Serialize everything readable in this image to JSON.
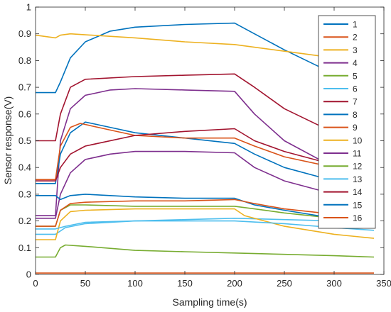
{
  "chart_data": {
    "type": "line",
    "title": "",
    "xlabel": "Sampling time(s)",
    "ylabel": "Sensor response(V)",
    "xlim": [
      0,
      350
    ],
    "ylim": [
      0,
      1
    ],
    "xticks": [
      0,
      50,
      100,
      150,
      200,
      250,
      300,
      350
    ],
    "yticks": [
      0,
      0.1,
      0.2,
      0.3,
      0.4,
      0.5,
      0.6,
      0.7,
      0.8,
      0.9,
      1
    ],
    "grid": false,
    "legend_position": "top-right",
    "series": [
      {
        "name": "1",
        "color": "#0072BD",
        "points": [
          [
            0,
            0.68
          ],
          [
            20,
            0.68
          ],
          [
            25,
            0.72
          ],
          [
            35,
            0.81
          ],
          [
            50,
            0.87
          ],
          [
            75,
            0.91
          ],
          [
            100,
            0.925
          ],
          [
            150,
            0.935
          ],
          [
            200,
            0.94
          ],
          [
            215,
            0.91
          ],
          [
            250,
            0.84
          ],
          [
            300,
            0.75
          ],
          [
            340,
            0.69
          ]
        ]
      },
      {
        "name": "2",
        "color": "#D95319",
        "points": [
          [
            0,
            0.005
          ],
          [
            340,
            0.005
          ]
        ]
      },
      {
        "name": "3",
        "color": "#EDB120",
        "points": [
          [
            0,
            0.895
          ],
          [
            20,
            0.885
          ],
          [
            25,
            0.895
          ],
          [
            35,
            0.9
          ],
          [
            100,
            0.885
          ],
          [
            150,
            0.87
          ],
          [
            200,
            0.86
          ],
          [
            250,
            0.835
          ],
          [
            300,
            0.81
          ],
          [
            340,
            0.795
          ]
        ]
      },
      {
        "name": "4",
        "color": "#7E2F8E",
        "points": [
          [
            0,
            0.22
          ],
          [
            20,
            0.22
          ],
          [
            25,
            0.5
          ],
          [
            35,
            0.62
          ],
          [
            50,
            0.67
          ],
          [
            75,
            0.69
          ],
          [
            100,
            0.695
          ],
          [
            150,
            0.69
          ],
          [
            200,
            0.685
          ],
          [
            220,
            0.6
          ],
          [
            250,
            0.5
          ],
          [
            300,
            0.4
          ],
          [
            340,
            0.36
          ]
        ]
      },
      {
        "name": "5",
        "color": "#77AC30",
        "points": [
          [
            0,
            0.065
          ],
          [
            20,
            0.065
          ],
          [
            25,
            0.1
          ],
          [
            30,
            0.11
          ],
          [
            50,
            0.105
          ],
          [
            100,
            0.09
          ],
          [
            150,
            0.085
          ],
          [
            200,
            0.08
          ],
          [
            250,
            0.075
          ],
          [
            300,
            0.07
          ],
          [
            340,
            0.065
          ]
        ]
      },
      {
        "name": "6",
        "color": "#4DBEEE",
        "points": [
          [
            0,
            0.15
          ],
          [
            20,
            0.15
          ],
          [
            30,
            0.175
          ],
          [
            50,
            0.19
          ],
          [
            100,
            0.2
          ],
          [
            150,
            0.205
          ],
          [
            200,
            0.21
          ],
          [
            250,
            0.205
          ],
          [
            300,
            0.2
          ],
          [
            340,
            0.195
          ]
        ]
      },
      {
        "name": "7",
        "color": "#A2142F",
        "points": [
          [
            0,
            0.5
          ],
          [
            20,
            0.5
          ],
          [
            25,
            0.6
          ],
          [
            35,
            0.7
          ],
          [
            50,
            0.73
          ],
          [
            100,
            0.74
          ],
          [
            150,
            0.745
          ],
          [
            200,
            0.75
          ],
          [
            220,
            0.7
          ],
          [
            250,
            0.62
          ],
          [
            300,
            0.53
          ],
          [
            340,
            0.48
          ]
        ]
      },
      {
        "name": "8",
        "color": "#0072BD",
        "points": [
          [
            0,
            0.34
          ],
          [
            20,
            0.34
          ],
          [
            25,
            0.45
          ],
          [
            35,
            0.53
          ],
          [
            50,
            0.57
          ],
          [
            75,
            0.55
          ],
          [
            100,
            0.53
          ],
          [
            150,
            0.51
          ],
          [
            200,
            0.49
          ],
          [
            220,
            0.45
          ],
          [
            250,
            0.4
          ],
          [
            300,
            0.35
          ],
          [
            340,
            0.33
          ]
        ]
      },
      {
        "name": "9",
        "color": "#D95319",
        "points": [
          [
            0,
            0.355
          ],
          [
            20,
            0.355
          ],
          [
            25,
            0.48
          ],
          [
            35,
            0.55
          ],
          [
            45,
            0.565
          ],
          [
            75,
            0.54
          ],
          [
            100,
            0.52
          ],
          [
            150,
            0.51
          ],
          [
            200,
            0.51
          ],
          [
            220,
            0.48
          ],
          [
            250,
            0.44
          ],
          [
            300,
            0.4
          ],
          [
            340,
            0.37
          ]
        ]
      },
      {
        "name": "10",
        "color": "#EDB120",
        "points": [
          [
            0,
            0.13
          ],
          [
            20,
            0.13
          ],
          [
            25,
            0.2
          ],
          [
            35,
            0.235
          ],
          [
            50,
            0.24
          ],
          [
            100,
            0.245
          ],
          [
            150,
            0.245
          ],
          [
            200,
            0.245
          ],
          [
            210,
            0.22
          ],
          [
            230,
            0.2
          ],
          [
            250,
            0.18
          ],
          [
            300,
            0.15
          ],
          [
            340,
            0.135
          ]
        ]
      },
      {
        "name": "11",
        "color": "#7E2F8E",
        "points": [
          [
            0,
            0.21
          ],
          [
            20,
            0.21
          ],
          [
            25,
            0.3
          ],
          [
            35,
            0.38
          ],
          [
            50,
            0.43
          ],
          [
            75,
            0.45
          ],
          [
            100,
            0.46
          ],
          [
            150,
            0.46
          ],
          [
            200,
            0.455
          ],
          [
            220,
            0.4
          ],
          [
            250,
            0.35
          ],
          [
            300,
            0.3
          ],
          [
            340,
            0.27
          ]
        ]
      },
      {
        "name": "12",
        "color": "#77AC30",
        "points": [
          [
            0,
            0.18
          ],
          [
            20,
            0.18
          ],
          [
            25,
            0.24
          ],
          [
            35,
            0.26
          ],
          [
            50,
            0.26
          ],
          [
            100,
            0.255
          ],
          [
            150,
            0.255
          ],
          [
            200,
            0.255
          ],
          [
            220,
            0.245
          ],
          [
            250,
            0.23
          ],
          [
            300,
            0.21
          ],
          [
            340,
            0.2
          ]
        ]
      },
      {
        "name": "13",
        "color": "#4DBEEE",
        "points": [
          [
            0,
            0.17
          ],
          [
            20,
            0.17
          ],
          [
            30,
            0.18
          ],
          [
            50,
            0.195
          ],
          [
            100,
            0.2
          ],
          [
            150,
            0.2
          ],
          [
            200,
            0.2
          ],
          [
            250,
            0.19
          ],
          [
            300,
            0.175
          ],
          [
            340,
            0.165
          ]
        ]
      },
      {
        "name": "14",
        "color": "#A2142F",
        "points": [
          [
            0,
            0.35
          ],
          [
            20,
            0.35
          ],
          [
            25,
            0.4
          ],
          [
            35,
            0.45
          ],
          [
            50,
            0.48
          ],
          [
            100,
            0.52
          ],
          [
            150,
            0.535
          ],
          [
            200,
            0.545
          ],
          [
            220,
            0.5
          ],
          [
            250,
            0.46
          ],
          [
            300,
            0.41
          ],
          [
            340,
            0.38
          ]
        ]
      },
      {
        "name": "15",
        "color": "#0072BD",
        "points": [
          [
            0,
            0.295
          ],
          [
            20,
            0.295
          ],
          [
            25,
            0.28
          ],
          [
            35,
            0.295
          ],
          [
            50,
            0.3
          ],
          [
            100,
            0.29
          ],
          [
            150,
            0.285
          ],
          [
            200,
            0.285
          ],
          [
            220,
            0.26
          ],
          [
            250,
            0.24
          ],
          [
            300,
            0.21
          ],
          [
            340,
            0.2
          ]
        ]
      },
      {
        "name": "16",
        "color": "#D95319",
        "points": [
          [
            0,
            0.18
          ],
          [
            20,
            0.18
          ],
          [
            25,
            0.24
          ],
          [
            35,
            0.265
          ],
          [
            50,
            0.27
          ],
          [
            100,
            0.275
          ],
          [
            150,
            0.275
          ],
          [
            200,
            0.28
          ],
          [
            220,
            0.265
          ],
          [
            250,
            0.245
          ],
          [
            300,
            0.225
          ],
          [
            340,
            0.21
          ]
        ]
      }
    ]
  }
}
